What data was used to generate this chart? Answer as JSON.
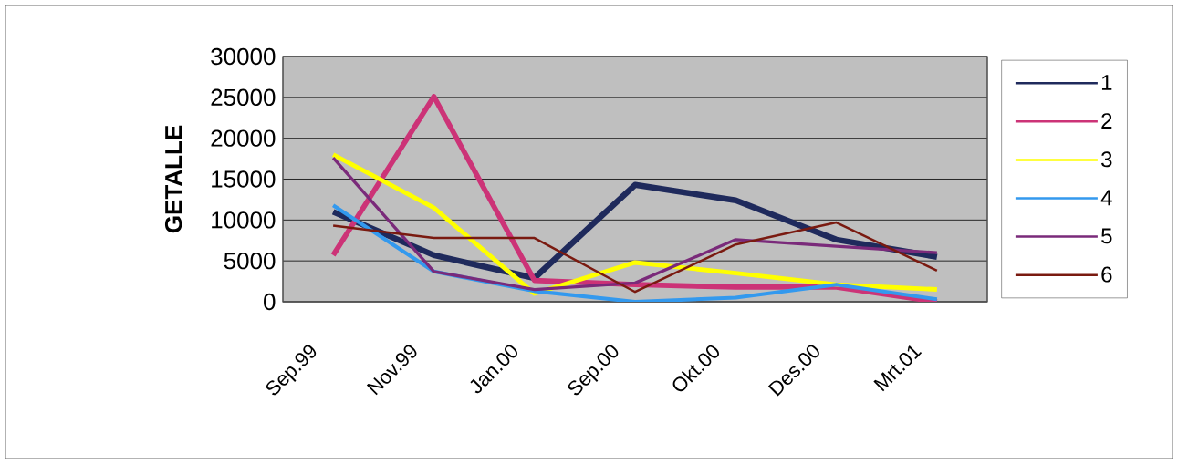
{
  "chart_data": {
    "type": "line",
    "ylabel": "GETALLE",
    "categories": [
      "Sep.99",
      "Nov.99",
      "Jan.00",
      "Sep.00",
      "Okt.00",
      "Des.00",
      "Mrt.01"
    ],
    "series": [
      {
        "name": "1",
        "color": "#1f2a5c",
        "values": [
          11000,
          5700,
          2900,
          14300,
          12400,
          7600,
          5500
        ]
      },
      {
        "name": "2",
        "color": "#cc3377",
        "values": [
          5700,
          25100,
          2600,
          2100,
          1800,
          1800,
          0
        ]
      },
      {
        "name": "3",
        "color": "#ffff00",
        "values": [
          18000,
          11500,
          1000,
          4800,
          3500,
          2100,
          1500
        ]
      },
      {
        "name": "4",
        "color": "#3399ee",
        "values": [
          11800,
          3700,
          1300,
          0,
          500,
          2100,
          300
        ]
      },
      {
        "name": "5",
        "color": "#7a2a7a",
        "values": [
          17600,
          3700,
          1500,
          2300,
          7600,
          6800,
          6000
        ]
      },
      {
        "name": "6",
        "color": "#7a1a10",
        "values": [
          9300,
          7800,
          7800,
          1200,
          7000,
          9700,
          3800
        ]
      }
    ],
    "ylim": [
      0,
      30000
    ],
    "yticks": [
      0,
      5000,
      10000,
      15000,
      20000,
      25000,
      30000
    ],
    "grid": "y",
    "legend": "right",
    "marker": "none",
    "line_style": "solid"
  }
}
